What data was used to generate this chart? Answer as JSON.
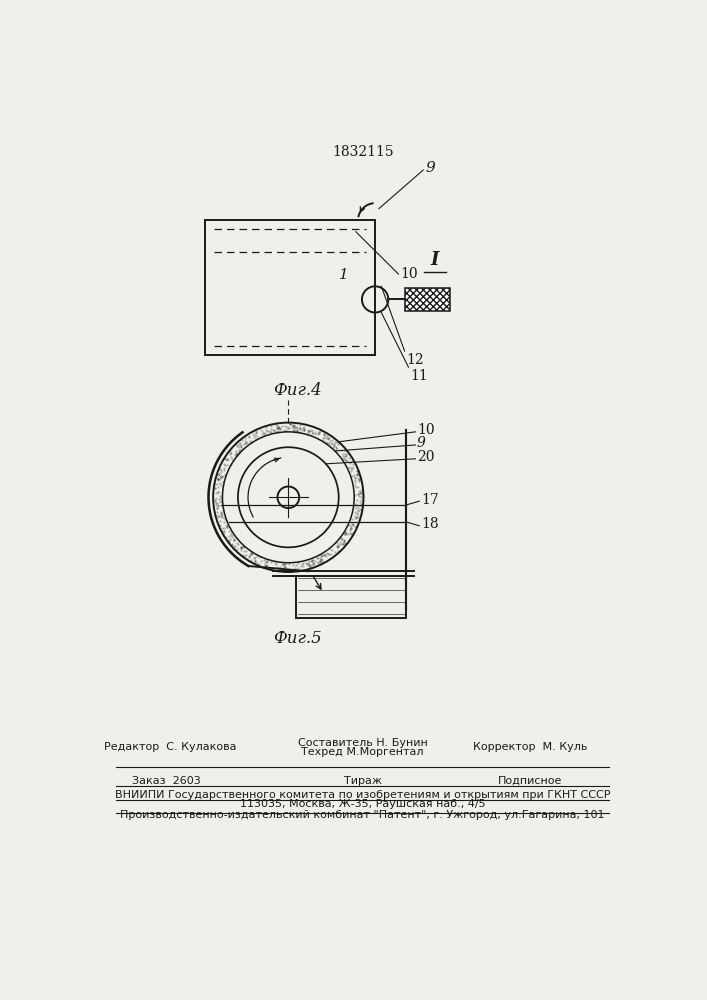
{
  "patent_number": "1832115",
  "fig4_caption": "Фиг.4",
  "fig5_caption": "Фиг.5",
  "bg_color": "#f0f0eb",
  "line_color": "#1a1a1a",
  "footer_editor": "Редактор  С. Кулакова",
  "footer_comp": "Составитель Н. Бунин",
  "footer_tech": "Техред М.Моргентал",
  "footer_corr": "Корректор  М. Куль",
  "footer_order": "Заказ  2603",
  "footer_tirazh": "Тираж",
  "footer_podp": "Подписное",
  "footer_vniip1": "ВНИИПИ Государственного комитета по изобретениям и открытиям при ГКНТ СССР",
  "footer_vniip2": "113035, Москва, Ж-35, Раушская наб., 4/5",
  "footer_prod": "Производственно-издательский комбинат \"Патент\", г. Ужгород, ул.Гагарина, 101"
}
